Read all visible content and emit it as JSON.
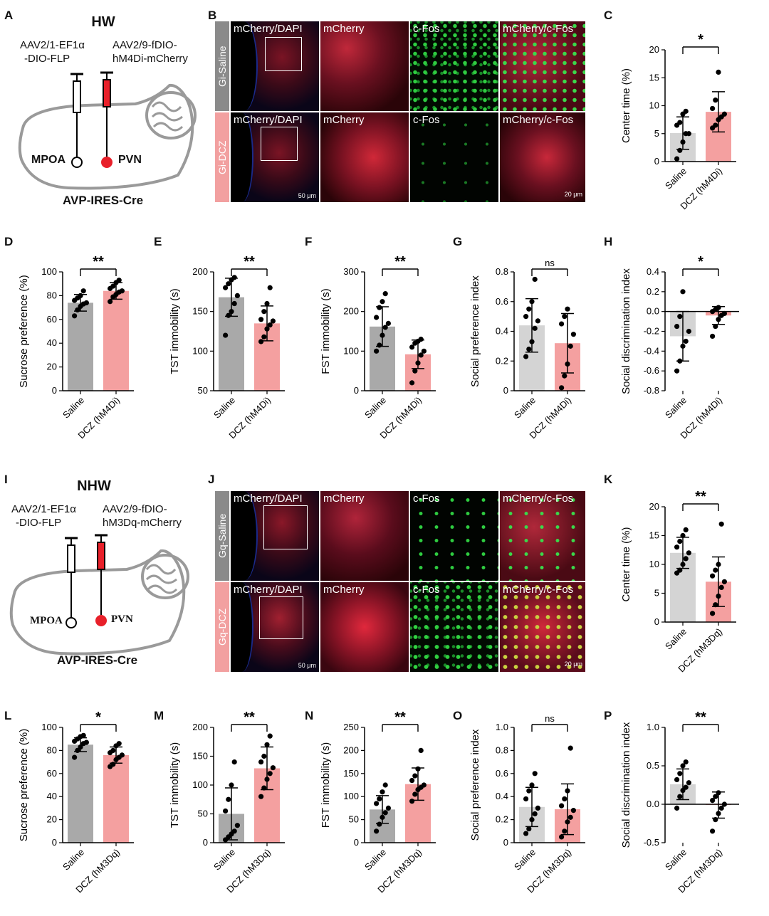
{
  "panel_letters": [
    "A",
    "B",
    "C",
    "D",
    "E",
    "F",
    "G",
    "H",
    "I",
    "J",
    "K",
    "L",
    "M",
    "N",
    "O",
    "P"
  ],
  "schematics": [
    {
      "group": "HW",
      "virus_left_line1": "AAV2/1-EF1α",
      "virus_left_line2": "-DIO-FLP",
      "virus_right_line1": "AAV2/9-fDIO-",
      "virus_right_line2": "hM4Di-mCherry",
      "region_left": "MPOA",
      "region_right": "PVN",
      "mouse_line": "AVP-IRES-Cre",
      "injection_color": "#e8202a"
    },
    {
      "group": "NHW",
      "virus_left_line1": "AAV2/1-EF1α",
      "virus_left_line2": "-DIO-FLP",
      "virus_right_line1": "AAV2/9-fDIO-",
      "virus_right_line2": "hM3Dq-mCherry",
      "region_left": "MPOA",
      "region_right": "PVN",
      "mouse_line": "AVP-IRES-Cre",
      "injection_color": "#e8202a"
    }
  ],
  "micrographs": [
    {
      "row1_condition": "Gi-Saline",
      "row2_condition": "Gi-DCZ",
      "channels": [
        "mCherry/DAPI",
        "mCherry",
        "c-Fos",
        "mCherry/c-Fos"
      ],
      "scale_low": "50 μm",
      "scale_high": "20 μm"
    },
    {
      "row1_condition": "Gq-Saline",
      "row2_condition": "Gq-DCZ",
      "channels": [
        "mCherry/DAPI",
        "mCherry",
        "c-Fos",
        "mCherry/c-Fos"
      ],
      "scale_low": "50 μm",
      "scale_high": "20 μm"
    }
  ],
  "colors": {
    "saline_bar": "#d4d4d4",
    "saline_bar_dark": "#a9a9a9",
    "dcz_bar": "#f4a0a0",
    "condition_gray": "#8a8a8a",
    "condition_pink": "#f2a0a0",
    "brain_outline": "#9a9a9a"
  },
  "chart_data": [
    {
      "panel": "C",
      "type": "bar",
      "categories": [
        "Saline",
        "DCZ (hM4Di)"
      ],
      "values": [
        5.1,
        8.9
      ],
      "errors": [
        2.9,
        3.6
      ],
      "ylabel": "Center time (%)",
      "ylim": [
        0,
        20
      ],
      "yticks": [
        0,
        5,
        10,
        15,
        20
      ],
      "significance": "*",
      "saline_dark": false,
      "points": [
        [
          0.5,
          2,
          3.5,
          5,
          5,
          6.5,
          7,
          8.5,
          9
        ],
        [
          6,
          6.5,
          7.5,
          8,
          8.5,
          9.5,
          11,
          16
        ]
      ]
    },
    {
      "panel": "D",
      "type": "bar",
      "categories": [
        "Saline",
        "DCZ (hM4Di)"
      ],
      "values": [
        74,
        84
      ],
      "errors": [
        7,
        7
      ],
      "ylabel": "Sucrose preference (%)",
      "ylim": [
        0,
        100
      ],
      "yticks": [
        0,
        20,
        40,
        60,
        80,
        100
      ],
      "significance": "**",
      "saline_dark": true,
      "points": [
        [
          63,
          68,
          71,
          73,
          74,
          76,
          78,
          80,
          84
        ],
        [
          75,
          79,
          81,
          83,
          84,
          86,
          88,
          91,
          93
        ]
      ]
    },
    {
      "panel": "E",
      "type": "bar",
      "categories": [
        "Saline",
        "DCZ (hM4Di)"
      ],
      "values": [
        168,
        135
      ],
      "errors": [
        24,
        22
      ],
      "ylabel": "TST immobility (s)",
      "ylim": [
        50,
        200
      ],
      "yticks": [
        50,
        100,
        150,
        200
      ],
      "significance": "**",
      "saline_dark": true,
      "points": [
        [
          120,
          145,
          150,
          160,
          170,
          180,
          185,
          190,
          193
        ],
        [
          112,
          118,
          128,
          133,
          138,
          140,
          150,
          160,
          180
        ]
      ]
    },
    {
      "panel": "F",
      "type": "bar",
      "categories": [
        "Saline",
        "DCZ (hM4Di)"
      ],
      "values": [
        162,
        92
      ],
      "errors": [
        50,
        36
      ],
      "ylabel": "FST immobility (s)",
      "ylim": [
        0,
        300
      ],
      "yticks": [
        0,
        100,
        200,
        300
      ],
      "significance": "**",
      "saline_dark": true,
      "points": [
        [
          100,
          115,
          140,
          160,
          170,
          185,
          210,
          225,
          245
        ],
        [
          20,
          50,
          70,
          90,
          100,
          110,
          120,
          125,
          130
        ]
      ]
    },
    {
      "panel": "G",
      "type": "bar",
      "categories": [
        "Saline",
        "DCZ (hM4Di)"
      ],
      "values": [
        0.44,
        0.32
      ],
      "errors": [
        0.18,
        0.2
      ],
      "ylabel": "Social preference index",
      "ylim": [
        0,
        0.8
      ],
      "yticks": [
        0,
        0.2,
        0.4,
        0.6,
        0.8
      ],
      "significance": "ns",
      "saline_dark": false,
      "points": [
        [
          0.23,
          0.28,
          0.33,
          0.42,
          0.47,
          0.5,
          0.55,
          0.6,
          0.75
        ],
        [
          0.02,
          0.1,
          0.18,
          0.3,
          0.38,
          0.45,
          0.5,
          0.55
        ]
      ]
    },
    {
      "panel": "H",
      "type": "bar",
      "categories": [
        "Saline",
        "DCZ (hM4Di)"
      ],
      "values": [
        -0.25,
        -0.04
      ],
      "errors": [
        0.25,
        0.09
      ],
      "ylabel": "Social discrimination index",
      "ylim": [
        -0.8,
        0.4
      ],
      "yticks": [
        -0.8,
        -0.6,
        -0.4,
        -0.2,
        0.0,
        0.2,
        0.4
      ],
      "significance": "*",
      "saline_dark": false,
      "points": [
        [
          -0.6,
          -0.5,
          -0.35,
          -0.3,
          -0.2,
          -0.15,
          -0.05,
          0.2
        ],
        [
          -0.25,
          -0.15,
          -0.08,
          -0.04,
          -0.02,
          0.0,
          0.02,
          0.04
        ]
      ]
    },
    {
      "panel": "K",
      "type": "bar",
      "categories": [
        "Saline",
        "DCZ (hM3Dq)"
      ],
      "values": [
        12,
        7
      ],
      "errors": [
        2.7,
        4.3
      ],
      "ylabel": "Center time (%)",
      "ylim": [
        0,
        20
      ],
      "yticks": [
        0,
        5,
        10,
        15,
        20
      ],
      "significance": "**",
      "saline_dark": false,
      "points": [
        [
          8.5,
          9,
          10,
          11,
          12,
          13,
          14,
          15,
          16
        ],
        [
          1.5,
          3,
          4.5,
          6,
          7,
          8,
          9,
          10,
          17
        ]
      ]
    },
    {
      "panel": "L",
      "type": "bar",
      "categories": [
        "Saline",
        "DCZ (hM3Dq)"
      ],
      "values": [
        85,
        76
      ],
      "errors": [
        6,
        7
      ],
      "ylabel": "Sucrose preference (%)",
      "ylim": [
        0,
        100
      ],
      "yticks": [
        0,
        20,
        40,
        60,
        80,
        100
      ],
      "significance": "*",
      "saline_dark": true,
      "points": [
        [
          74,
          80,
          83,
          86,
          87,
          88,
          90,
          92,
          93
        ],
        [
          66,
          68,
          72,
          74,
          76,
          78,
          80,
          84,
          86
        ]
      ]
    },
    {
      "panel": "M",
      "type": "bar",
      "categories": [
        "Saline",
        "DCZ (hM3Dq)"
      ],
      "values": [
        50,
        129
      ],
      "errors": [
        45,
        37
      ],
      "ylabel": "TST immobility (s)",
      "ylim": [
        0,
        200
      ],
      "yticks": [
        0,
        50,
        100,
        150,
        200
      ],
      "significance": "**",
      "saline_dark": true,
      "points": [
        [
          5,
          10,
          15,
          20,
          30,
          55,
          75,
          100,
          140
        ],
        [
          80,
          95,
          110,
          120,
          130,
          140,
          150,
          170,
          185
        ]
      ]
    },
    {
      "panel": "N",
      "type": "bar",
      "categories": [
        "Saline",
        "DCZ (hM3Dq)"
      ],
      "values": [
        72,
        127
      ],
      "errors": [
        30,
        35
      ],
      "ylabel": "FST immobility (s)",
      "ylim": [
        0,
        250
      ],
      "yticks": [
        0,
        50,
        100,
        150,
        200,
        250
      ],
      "significance": "**",
      "saline_dark": true,
      "points": [
        [
          25,
          40,
          55,
          65,
          75,
          85,
          95,
          110,
          125
        ],
        [
          90,
          105,
          115,
          120,
          125,
          135,
          145,
          160,
          200
        ]
      ]
    },
    {
      "panel": "O",
      "type": "bar",
      "categories": [
        "Saline",
        "DCZ (hM3Dq)"
      ],
      "values": [
        0.31,
        0.29
      ],
      "errors": [
        0.17,
        0.22
      ],
      "ylabel": "Social preference index",
      "ylim": [
        0,
        1.0
      ],
      "yticks": [
        0,
        0.2,
        0.4,
        0.6,
        0.8,
        1.0
      ],
      "significance": "ns",
      "saline_dark": false,
      "points": [
        [
          0.08,
          0.12,
          0.2,
          0.25,
          0.3,
          0.38,
          0.45,
          0.5,
          0.6
        ],
        [
          0.05,
          0.1,
          0.18,
          0.22,
          0.28,
          0.32,
          0.38,
          0.45,
          0.82
        ]
      ]
    },
    {
      "panel": "P",
      "type": "bar",
      "categories": [
        "Saline",
        "DCZ (hM3Dq)"
      ],
      "values": [
        0.26,
        -0.01
      ],
      "errors": [
        0.2,
        0.17
      ],
      "ylabel": "Social discrimination index",
      "ylim": [
        -0.5,
        1.0
      ],
      "yticks": [
        -0.5,
        0.0,
        0.5,
        1.0
      ],
      "significance": "**",
      "saline_dark": false,
      "points": [
        [
          -0.05,
          0.1,
          0.18,
          0.22,
          0.28,
          0.32,
          0.4,
          0.5,
          0.55
        ],
        [
          -0.35,
          -0.2,
          -0.12,
          -0.05,
          0.0,
          0.05,
          0.1,
          0.15
        ]
      ]
    }
  ]
}
